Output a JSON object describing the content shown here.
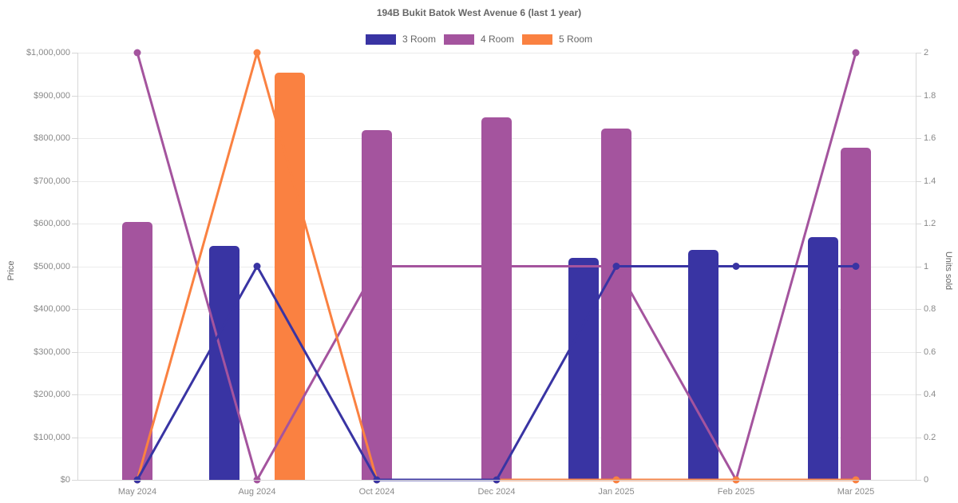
{
  "title": "194B Bukit Batok West Avenue 6 (last 1 year)",
  "legend": {
    "items": [
      {
        "label": "3 Room",
        "color": "#3934a3"
      },
      {
        "label": "4 Room",
        "color": "#a4549e"
      },
      {
        "label": "5 Room",
        "color": "#fa8141"
      }
    ]
  },
  "chart_data": {
    "type": "bar+line (dual axis)",
    "title": "194B Bukit Batok West Avenue 6 (last 1 year)",
    "categories": [
      "May 2024",
      "Aug 2024",
      "Oct 2024",
      "Dec 2024",
      "Jan 2025",
      "Feb 2025",
      "Mar 2025"
    ],
    "left_axis": {
      "label": "Price",
      "min": 0,
      "max": 1000000,
      "step": 100000,
      "ticks": [
        "$1,000,000",
        "$900,000",
        "$800,000",
        "$700,000",
        "$600,000",
        "$500,000",
        "$400,000",
        "$300,000",
        "$200,000",
        "$100,000",
        "$0"
      ]
    },
    "right_axis": {
      "label": "Units sold",
      "min": 0,
      "max": 2,
      "step": 0.2,
      "ticks": [
        "2",
        "1.8",
        "1.6",
        "1.4",
        "1.2",
        "1",
        "0.8",
        "0.6",
        "0.4",
        "0.2",
        "0"
      ]
    },
    "grid": "horizontal only",
    "legend_position": "top",
    "series": [
      {
        "name": "3 Room",
        "color": "#3934a3",
        "bar_prices": [
          null,
          548000,
          null,
          null,
          520000,
          538000,
          568000
        ],
        "line_units": [
          0,
          1,
          0,
          0,
          1,
          1,
          1
        ]
      },
      {
        "name": "4 Room",
        "color": "#a4549e",
        "bar_prices": [
          603000,
          null,
          818000,
          848000,
          823000,
          null,
          778000
        ],
        "line_units": [
          2,
          0,
          1,
          1,
          1,
          0,
          2
        ]
      },
      {
        "name": "5 Room",
        "color": "#fa8141",
        "bar_prices": [
          null,
          953000,
          null,
          null,
          null,
          null,
          null
        ],
        "line_units": [
          0,
          2,
          0,
          0,
          0,
          0,
          0
        ]
      }
    ]
  }
}
